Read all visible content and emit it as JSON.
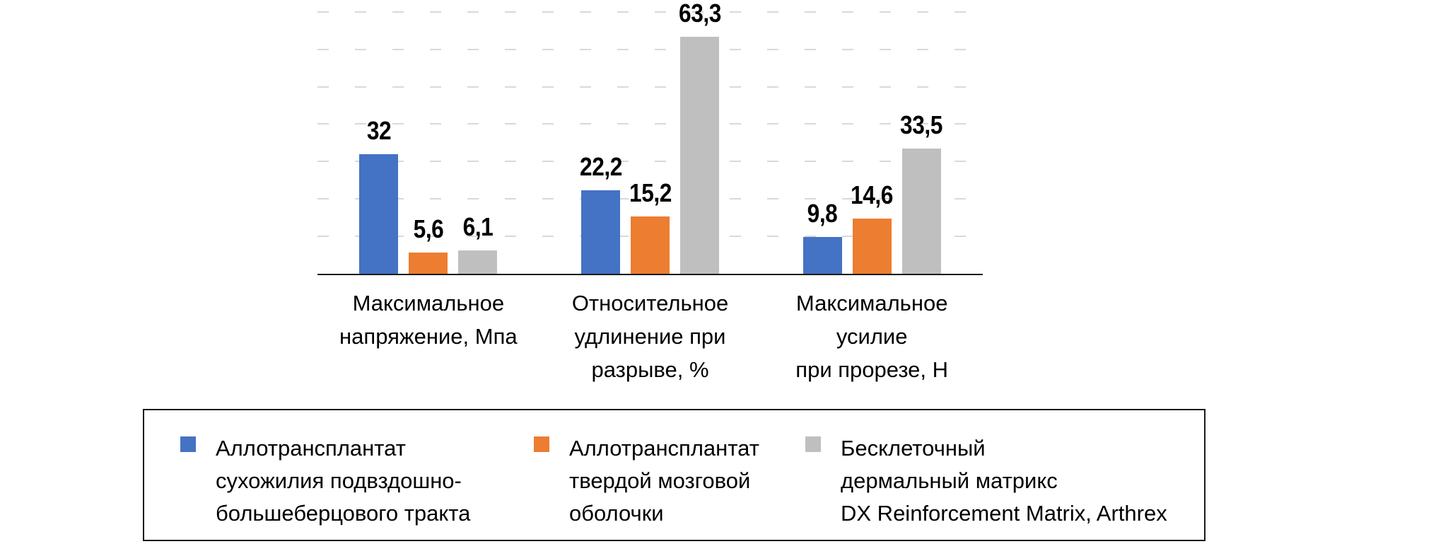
{
  "chart_data": {
    "type": "bar",
    "categories": [
      {
        "lines": [
          "Максимальное",
          "напряжение, Мпа"
        ]
      },
      {
        "lines": [
          "Относительное",
          "удлинение при",
          "разрыве, %"
        ]
      },
      {
        "lines": [
          "Максимальное",
          "усилие",
          "при прорезе, Н"
        ]
      }
    ],
    "series": [
      {
        "name": "Аллотрансплантат сухожилия подвздошно-большеберцового тракта",
        "color": "#4472C4",
        "values": [
          32,
          22.2,
          9.8
        ],
        "labels": [
          "32",
          "22,2",
          "9,8"
        ]
      },
      {
        "name": "Аллотрансплантат твердой мозговой оболочки",
        "color": "#ED7D31",
        "values": [
          5.6,
          15.2,
          14.6
        ],
        "labels": [
          "5,6",
          "15,2",
          "14,6"
        ]
      },
      {
        "name": "Бесклеточный дермальный матрикс DX Reinforcement Matrix, Arthrex",
        "color": "#BFBFBF",
        "values": [
          6.1,
          63.3,
          33.5
        ],
        "labels": [
          "6,1",
          "63,3",
          "33,5"
        ]
      }
    ],
    "ylim": [
      0,
      70
    ],
    "grid_step": 10,
    "grid_style": "dashed",
    "legend_position": "bottom",
    "legend_entries": [
      {
        "color": "#4472C4",
        "lines": [
          "Аллотрансплантат",
          "сухожилия подвздошно-",
          "большеберцового тракта"
        ]
      },
      {
        "color": "#ED7D31",
        "lines": [
          "Аллотрансплантат",
          "твердой мозговой",
          "оболочки"
        ]
      },
      {
        "color": "#BFBFBF",
        "lines": [
          "Бесклеточный",
          "дермальный матрикс",
          "DX Reinforcement Matrix, Arthrex"
        ]
      }
    ]
  }
}
